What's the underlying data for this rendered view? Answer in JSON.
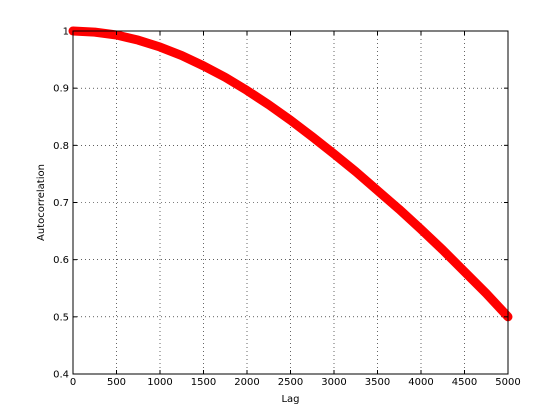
{
  "chart_data": {
    "type": "line",
    "title": "",
    "xlabel": "Lag",
    "ylabel": "Autocorrelation",
    "xlim": [
      0,
      5000
    ],
    "ylim": [
      0.4,
      1.0
    ],
    "grid": true,
    "x_ticks": [
      0,
      500,
      1000,
      1500,
      2000,
      2500,
      3000,
      3500,
      4000,
      4500,
      5000
    ],
    "y_ticks": [
      0.4,
      0.5,
      0.6,
      0.7,
      0.8,
      0.9,
      1.0
    ],
    "x_tick_labels": [
      "0",
      "500",
      "1000",
      "1500",
      "2000",
      "2500",
      "3000",
      "3500",
      "4000",
      "4500",
      "5000"
    ],
    "y_tick_labels": [
      "0.4",
      "0.5",
      "0.6",
      "0.7",
      "0.8",
      "0.9",
      "1"
    ],
    "series": [
      {
        "color": "#ff0000",
        "x": [
          0,
          250,
          500,
          750,
          1000,
          1250,
          1500,
          1750,
          2000,
          2250,
          2500,
          2750,
          3000,
          3250,
          3500,
          3750,
          4000,
          4250,
          4500,
          4750,
          5000
        ],
        "y": [
          1.0,
          0.998,
          0.993,
          0.984,
          0.972,
          0.957,
          0.939,
          0.919,
          0.896,
          0.871,
          0.844,
          0.815,
          0.785,
          0.754,
          0.721,
          0.688,
          0.653,
          0.617,
          0.579,
          0.541,
          0.5
        ]
      }
    ]
  }
}
